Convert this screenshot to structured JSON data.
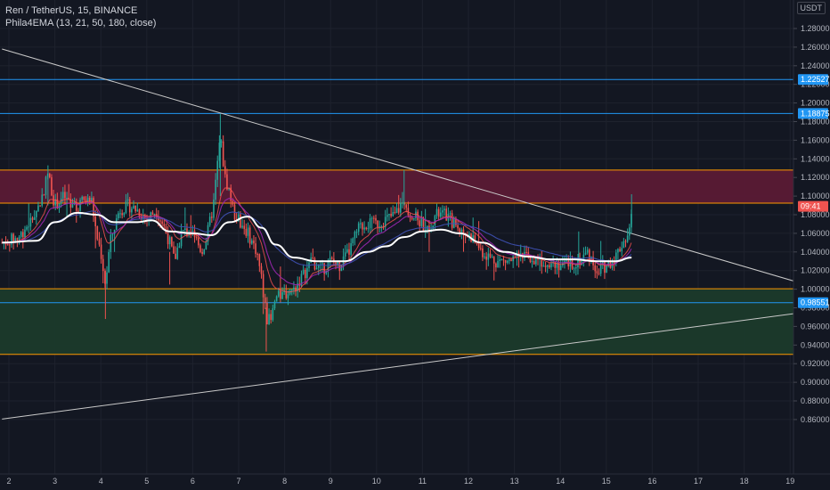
{
  "legend": {
    "symbol_line": "Ren / TetherUS, 15, BINANCE",
    "indicator_line": "Phila4EMA (13, 21, 50, 180, close)"
  },
  "price_axis": {
    "currency": "USDT",
    "ticks": [
      "1.28000",
      "1.26000",
      "1.24000",
      "1.22000",
      "1.20000",
      "1.18000",
      "1.16000",
      "1.14000",
      "1.12000",
      "1.10000",
      "1.08000",
      "1.06000",
      "1.04000",
      "1.02000",
      "1.00000",
      "0.98000",
      "0.96000",
      "0.94000",
      "0.92000",
      "0.90000",
      "0.88000",
      "0.86000"
    ]
  },
  "time_axis": {
    "ticks": [
      "2",
      "3",
      "4",
      "5",
      "6",
      "7",
      "8",
      "9",
      "10",
      "11",
      "12",
      "13",
      "14",
      "15",
      "16",
      "17",
      "18",
      "19"
    ]
  },
  "colors": {
    "background": "#131722",
    "grid": "#1e222d",
    "up": "#26a69a",
    "down": "#ef5350",
    "horizontal_blue": "#2196f3",
    "zone_border_orange": "#ff9800",
    "upper_zone_fill": "#5a1a35",
    "lower_zone_fill": "#1b3a2b",
    "trendline": "#c9c9c9",
    "ema180": "#ffffff",
    "ema_fast": "#9c27b0",
    "ema_mid": "#3f51b5"
  },
  "chart_data": {
    "type": "candlestick",
    "symbol": "REN/USDT",
    "exchange": "BINANCE",
    "interval": "15",
    "ylim": [
      0.855,
      1.295
    ],
    "xlim": [
      1.85,
      19.2
    ],
    "horizontal_lines": [
      {
        "price": 1.22527,
        "label": "1.22527",
        "color": "#2196f3"
      },
      {
        "price": 1.18875,
        "label": "1.18875",
        "color": "#2196f3"
      },
      {
        "price": 0.98551,
        "label": "0.98551",
        "color": "#2196f3"
      }
    ],
    "zones": [
      {
        "top": 1.128,
        "bottom": 1.0925,
        "fill": "upper_zone_fill"
      },
      {
        "top": 1.0005,
        "bottom": 0.93,
        "fill": "lower_zone_fill"
      }
    ],
    "trendlines": [
      {
        "from": [
          1.85,
          1.258
        ],
        "to": [
          19.2,
          1.007
        ]
      },
      {
        "from": [
          1.85,
          0.8605
        ],
        "to": [
          19.2,
          0.9745
        ]
      }
    ],
    "current_price": {
      "price": 1.089,
      "label": "09:41",
      "color": "#ef5350"
    },
    "price_path": [
      [
        1.85,
        1.05
      ],
      [
        2.2,
        1.055
      ],
      [
        2.5,
        1.075
      ],
      [
        2.7,
        1.095
      ],
      [
        2.85,
        1.125
      ],
      [
        3.0,
        1.09
      ],
      [
        3.2,
        1.1
      ],
      [
        3.4,
        1.085
      ],
      [
        3.6,
        1.095
      ],
      [
        3.8,
        1.095
      ],
      [
        3.9,
        1.06
      ],
      [
        4.0,
        1.04
      ],
      [
        4.1,
        1.005
      ],
      [
        4.2,
        1.05
      ],
      [
        4.4,
        1.085
      ],
      [
        4.6,
        1.09
      ],
      [
        4.8,
        1.085
      ],
      [
        5.0,
        1.075
      ],
      [
        5.2,
        1.085
      ],
      [
        5.35,
        1.07
      ],
      [
        5.5,
        1.05
      ],
      [
        5.6,
        1.03
      ],
      [
        5.75,
        1.06
      ],
      [
        6.0,
        1.065
      ],
      [
        6.1,
        1.05
      ],
      [
        6.2,
        1.04
      ],
      [
        6.3,
        1.055
      ],
      [
        6.45,
        1.09
      ],
      [
        6.6,
        1.165
      ],
      [
        6.7,
        1.12
      ],
      [
        6.8,
        1.105
      ],
      [
        6.9,
        1.08
      ],
      [
        7.0,
        1.075
      ],
      [
        7.2,
        1.06
      ],
      [
        7.4,
        1.04
      ],
      [
        7.5,
        1.01
      ],
      [
        7.6,
        0.97
      ],
      [
        7.7,
        0.965
      ],
      [
        7.8,
        0.99
      ],
      [
        8.0,
        0.995
      ],
      [
        8.2,
        1.0
      ],
      [
        8.4,
        1.015
      ],
      [
        8.6,
        1.03
      ],
      [
        8.8,
        1.02
      ],
      [
        9.0,
        1.03
      ],
      [
        9.2,
        1.025
      ],
      [
        9.4,
        1.04
      ],
      [
        9.6,
        1.065
      ],
      [
        9.8,
        1.07
      ],
      [
        10.0,
        1.07
      ],
      [
        10.2,
        1.075
      ],
      [
        10.4,
        1.08
      ],
      [
        10.6,
        1.095
      ],
      [
        10.75,
        1.08
      ],
      [
        10.9,
        1.075
      ],
      [
        11.1,
        1.065
      ],
      [
        11.3,
        1.08
      ],
      [
        11.5,
        1.08
      ],
      [
        11.7,
        1.07
      ],
      [
        11.9,
        1.06
      ],
      [
        12.1,
        1.055
      ],
      [
        12.3,
        1.04
      ],
      [
        12.6,
        1.03
      ],
      [
        12.9,
        1.03
      ],
      [
        13.2,
        1.035
      ],
      [
        13.5,
        1.03
      ],
      [
        13.8,
        1.03
      ],
      [
        14.1,
        1.025
      ],
      [
        14.4,
        1.03
      ],
      [
        14.6,
        1.04
      ],
      [
        14.8,
        1.02
      ],
      [
        15.0,
        1.025
      ],
      [
        15.2,
        1.035
      ],
      [
        15.35,
        1.05
      ],
      [
        15.5,
        1.06
      ],
      [
        15.55,
        1.089
      ]
    ],
    "ema180_path": [
      [
        1.85,
        1.05
      ],
      [
        2.6,
        1.052
      ],
      [
        3.0,
        1.072
      ],
      [
        3.5,
        1.082
      ],
      [
        3.9,
        1.08
      ],
      [
        4.3,
        1.072
      ],
      [
        4.8,
        1.072
      ],
      [
        5.1,
        1.074
      ],
      [
        5.5,
        1.062
      ],
      [
        6.0,
        1.06
      ],
      [
        6.4,
        1.058
      ],
      [
        6.8,
        1.072
      ],
      [
        7.2,
        1.078
      ],
      [
        7.5,
        1.066
      ],
      [
        7.8,
        1.048
      ],
      [
        8.2,
        1.034
      ],
      [
        8.7,
        1.03
      ],
      [
        9.3,
        1.03
      ],
      [
        9.8,
        1.04
      ],
      [
        10.2,
        1.046
      ],
      [
        10.6,
        1.056
      ],
      [
        11.0,
        1.062
      ],
      [
        11.4,
        1.064
      ],
      [
        11.8,
        1.06
      ],
      [
        12.3,
        1.05
      ],
      [
        12.8,
        1.04
      ],
      [
        13.3,
        1.035
      ],
      [
        13.8,
        1.032
      ],
      [
        14.3,
        1.032
      ],
      [
        14.8,
        1.03
      ],
      [
        15.2,
        1.03
      ],
      [
        15.55,
        1.034
      ]
    ]
  }
}
